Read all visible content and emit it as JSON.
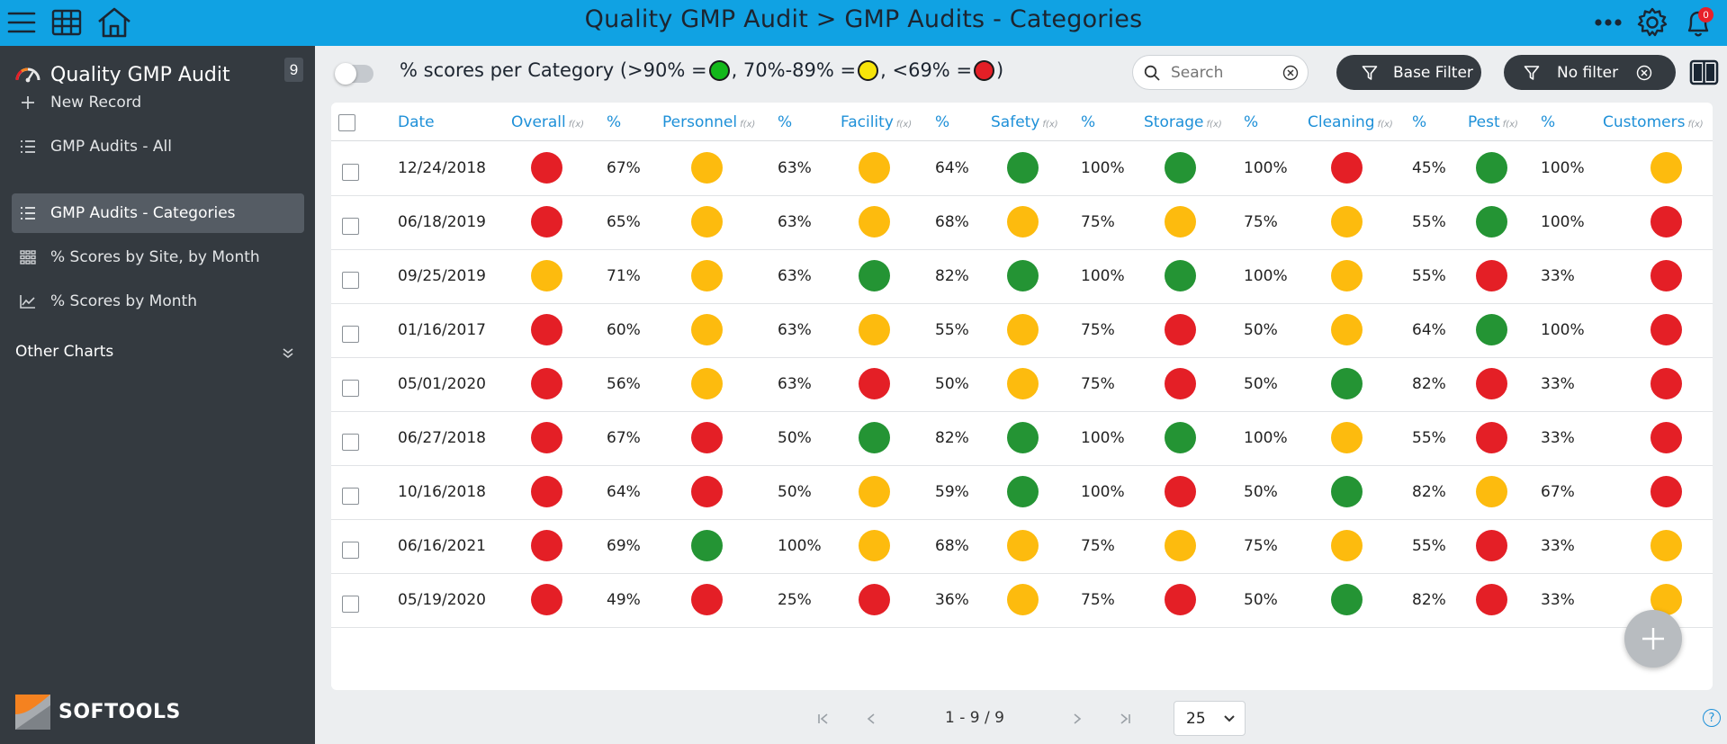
{
  "header": {
    "title": "Quality GMP Audit > GMP Audits - Categories",
    "notification_count": "0",
    "icons": [
      "hamburger-menu-icon",
      "grid-icon",
      "home-icon",
      "more-icon",
      "gear-icon",
      "bell-icon"
    ]
  },
  "sidebar": {
    "app_title": "Quality GMP Audit",
    "count": "9",
    "items": [
      {
        "label": "New Record",
        "icon": "plus-icon"
      },
      {
        "label": "GMP Audits - All",
        "icon": "list-icon"
      },
      {
        "label": "GMP Audits - Categories",
        "icon": "list-icon",
        "active": true
      },
      {
        "label": "% Scores by Site, by Month",
        "icon": "matrix-icon"
      },
      {
        "label": "% Scores by Month",
        "icon": "line-chart-icon"
      }
    ],
    "section_label": "Other Charts",
    "logo_text": "SOFTOOLS"
  },
  "toolbar": {
    "legend": {
      "prefix": "% scores per Category (>90% = ",
      "sep1": ", 70%-89% = ",
      "sep2": ", <69% = ",
      "suffix": ")",
      "colors": {
        "green": "#13b81a",
        "yellow": "#f7e40a",
        "red": "#e41f26"
      }
    },
    "search_placeholder": "Search",
    "base_filter_label": "Base Filter",
    "no_filter_label": "No filter"
  },
  "table": {
    "columns": [
      "Date",
      "Overall",
      "%",
      "Personnel",
      "%",
      "Facility",
      "%",
      "Safety",
      "%",
      "Storage",
      "%",
      "Cleaning",
      "%",
      "Pest",
      "%",
      "Customers"
    ],
    "fx_label": "f(x)",
    "status_colors": {
      "red": "#e41f26",
      "yellow": "#fdbb0e",
      "green": "#249434"
    },
    "rows": [
      {
        "date": "12/24/2018",
        "overall": "red",
        "overall_pct": "67%",
        "personnel": "yellow",
        "personnel_pct": "63%",
        "facility": "yellow",
        "facility_pct": "64%",
        "safety": "green",
        "safety_pct": "100%",
        "storage": "green",
        "storage_pct": "100%",
        "cleaning": "red",
        "cleaning_pct": "45%",
        "pest": "green",
        "pest_pct": "100%",
        "customers": "yellow"
      },
      {
        "date": "06/18/2019",
        "overall": "red",
        "overall_pct": "65%",
        "personnel": "yellow",
        "personnel_pct": "63%",
        "facility": "yellow",
        "facility_pct": "68%",
        "safety": "yellow",
        "safety_pct": "75%",
        "storage": "yellow",
        "storage_pct": "75%",
        "cleaning": "yellow",
        "cleaning_pct": "55%",
        "pest": "green",
        "pest_pct": "100%",
        "customers": "red"
      },
      {
        "date": "09/25/2019",
        "overall": "yellow",
        "overall_pct": "71%",
        "personnel": "yellow",
        "personnel_pct": "63%",
        "facility": "green",
        "facility_pct": "82%",
        "safety": "green",
        "safety_pct": "100%",
        "storage": "green",
        "storage_pct": "100%",
        "cleaning": "yellow",
        "cleaning_pct": "55%",
        "pest": "red",
        "pest_pct": "33%",
        "customers": "red"
      },
      {
        "date": "01/16/2017",
        "overall": "red",
        "overall_pct": "60%",
        "personnel": "yellow",
        "personnel_pct": "63%",
        "facility": "yellow",
        "facility_pct": "55%",
        "safety": "yellow",
        "safety_pct": "75%",
        "storage": "red",
        "storage_pct": "50%",
        "cleaning": "yellow",
        "cleaning_pct": "64%",
        "pest": "green",
        "pest_pct": "100%",
        "customers": "red"
      },
      {
        "date": "05/01/2020",
        "overall": "red",
        "overall_pct": "56%",
        "personnel": "yellow",
        "personnel_pct": "63%",
        "facility": "red",
        "facility_pct": "50%",
        "safety": "yellow",
        "safety_pct": "75%",
        "storage": "red",
        "storage_pct": "50%",
        "cleaning": "green",
        "cleaning_pct": "82%",
        "pest": "red",
        "pest_pct": "33%",
        "customers": "red"
      },
      {
        "date": "06/27/2018",
        "overall": "red",
        "overall_pct": "67%",
        "personnel": "red",
        "personnel_pct": "50%",
        "facility": "green",
        "facility_pct": "82%",
        "safety": "green",
        "safety_pct": "100%",
        "storage": "green",
        "storage_pct": "100%",
        "cleaning": "yellow",
        "cleaning_pct": "55%",
        "pest": "red",
        "pest_pct": "33%",
        "customers": "red"
      },
      {
        "date": "10/16/2018",
        "overall": "red",
        "overall_pct": "64%",
        "personnel": "red",
        "personnel_pct": "50%",
        "facility": "yellow",
        "facility_pct": "59%",
        "safety": "green",
        "safety_pct": "100%",
        "storage": "red",
        "storage_pct": "50%",
        "cleaning": "green",
        "cleaning_pct": "82%",
        "pest": "yellow",
        "pest_pct": "67%",
        "customers": "red"
      },
      {
        "date": "06/16/2021",
        "overall": "red",
        "overall_pct": "69%",
        "personnel": "green",
        "personnel_pct": "100%",
        "facility": "yellow",
        "facility_pct": "68%",
        "safety": "yellow",
        "safety_pct": "75%",
        "storage": "yellow",
        "storage_pct": "75%",
        "cleaning": "yellow",
        "cleaning_pct": "55%",
        "pest": "red",
        "pest_pct": "33%",
        "customers": "yellow"
      },
      {
        "date": "05/19/2020",
        "overall": "red",
        "overall_pct": "49%",
        "personnel": "red",
        "personnel_pct": "25%",
        "facility": "red",
        "facility_pct": "36%",
        "safety": "yellow",
        "safety_pct": "75%",
        "storage": "red",
        "storage_pct": "50%",
        "cleaning": "green",
        "cleaning_pct": "82%",
        "pest": "red",
        "pest_pct": "33%",
        "customers": "yellow"
      }
    ]
  },
  "pagination": {
    "range_text": "1 - 9 / 9",
    "page_size": "25"
  },
  "help_label": "?"
}
